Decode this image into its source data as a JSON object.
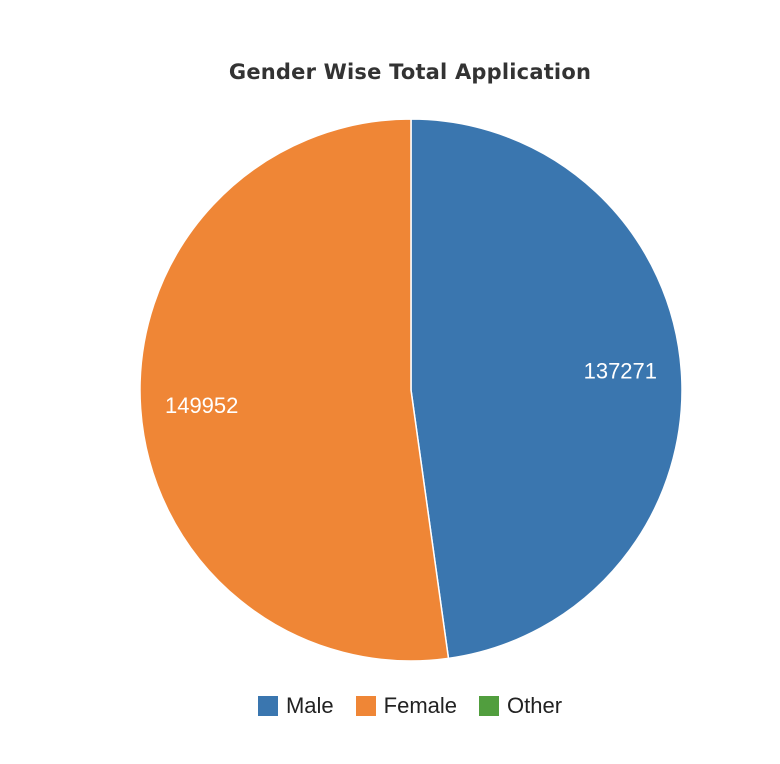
{
  "chart_data": {
    "type": "pie",
    "title": "Gender Wise Total Application",
    "categories": [
      "Male",
      "Female",
      "Other"
    ],
    "values": [
      137271,
      149952,
      0
    ],
    "colors": [
      "#3a76af",
      "#ef8636",
      "#519e3e"
    ],
    "data_labels": [
      "137271",
      "149952",
      ""
    ],
    "legend": {
      "position": "bottom",
      "items": [
        {
          "label": "Male",
          "color": "#3a76af"
        },
        {
          "label": "Female",
          "color": "#ef8636"
        },
        {
          "label": "Other",
          "color": "#519e3e"
        }
      ]
    }
  }
}
